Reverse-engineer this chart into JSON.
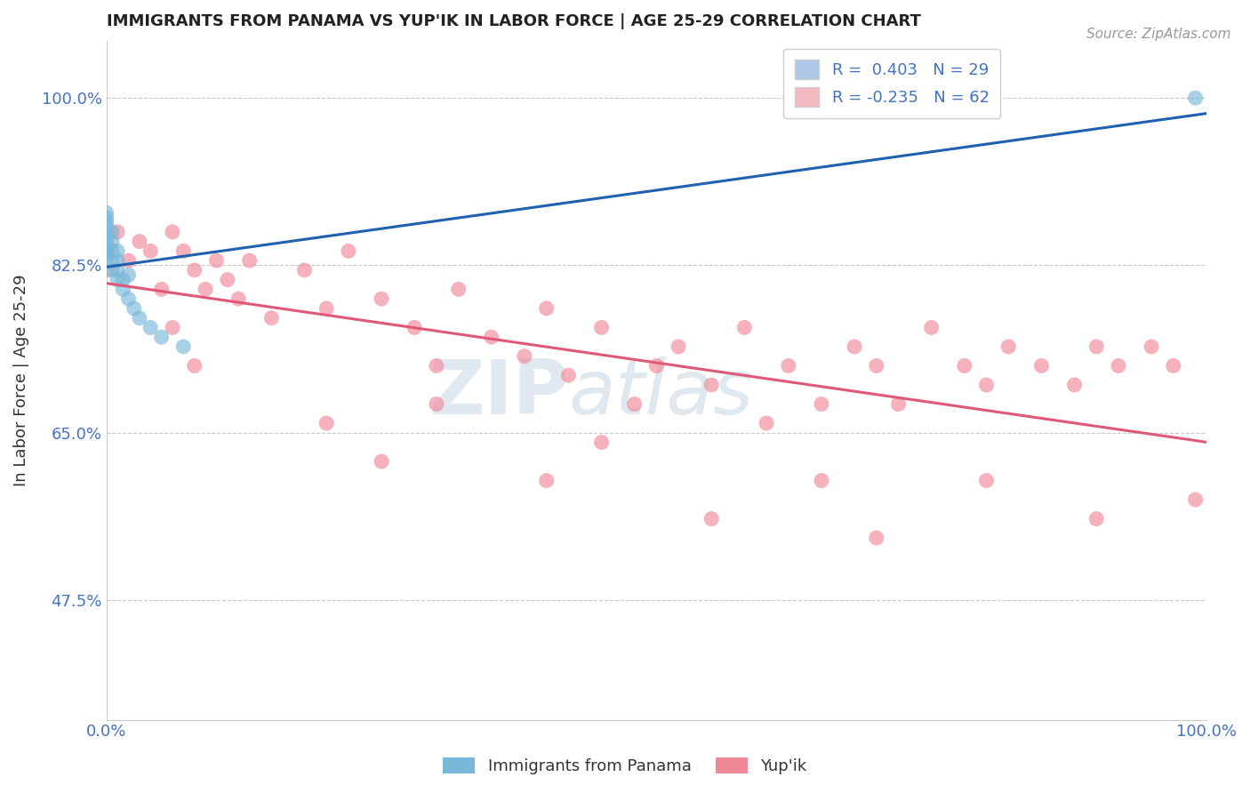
{
  "title": "IMMIGRANTS FROM PANAMA VS YUP'IK IN LABOR FORCE | AGE 25-29 CORRELATION CHART",
  "source_text": "Source: ZipAtlas.com",
  "ylabel": "In Labor Force | Age 25-29",
  "xlim": [
    0.0,
    1.0
  ],
  "ylim": [
    0.35,
    1.06
  ],
  "yticks": [
    0.475,
    0.65,
    0.825,
    1.0
  ],
  "ytick_labels": [
    "47.5%",
    "65.0%",
    "82.5%",
    "100.0%"
  ],
  "xtick_labels": [
    "0.0%",
    "100.0%"
  ],
  "legend_entries": [
    {
      "label": "R =  0.403   N = 29",
      "color": "#aec6e8"
    },
    {
      "label": "R = -0.235   N = 62",
      "color": "#f4b8c1"
    }
  ],
  "watermark_ZIP": "ZIP",
  "watermark_atlas": "atlas",
  "blue_color": "#7ab8d9",
  "pink_color": "#f08898",
  "blue_line_color": "#2060b0",
  "pink_line_color": "#e05878",
  "background_color": "#ffffff",
  "panama_x": [
    0.0,
    0.0,
    0.0,
    0.0,
    0.0,
    0.0,
    0.0,
    0.0,
    0.0,
    0.0,
    0.005,
    0.005,
    0.005,
    0.005,
    0.005,
    0.01,
    0.01,
    0.01,
    0.01,
    0.015,
    0.015,
    0.02,
    0.02,
    0.025,
    0.03,
    0.04,
    0.05,
    0.07,
    0.99
  ],
  "panama_y": [
    0.835,
    0.84,
    0.845,
    0.85,
    0.855,
    0.86,
    0.865,
    0.87,
    0.875,
    0.88,
    0.82,
    0.83,
    0.84,
    0.85,
    0.86,
    0.81,
    0.82,
    0.83,
    0.84,
    0.8,
    0.81,
    0.79,
    0.815,
    0.78,
    0.77,
    0.76,
    0.75,
    0.74,
    1.0
  ],
  "yupik_x": [
    0.0,
    0.0,
    0.01,
    0.02,
    0.03,
    0.04,
    0.05,
    0.06,
    0.07,
    0.08,
    0.09,
    0.1,
    0.11,
    0.12,
    0.13,
    0.15,
    0.18,
    0.2,
    0.22,
    0.25,
    0.28,
    0.3,
    0.32,
    0.35,
    0.38,
    0.4,
    0.42,
    0.45,
    0.48,
    0.5,
    0.52,
    0.55,
    0.58,
    0.6,
    0.62,
    0.65,
    0.68,
    0.7,
    0.72,
    0.75,
    0.78,
    0.8,
    0.82,
    0.85,
    0.88,
    0.9,
    0.92,
    0.95,
    0.97,
    0.99,
    0.06,
    0.08,
    0.2,
    0.25,
    0.3,
    0.4,
    0.45,
    0.55,
    0.65,
    0.7,
    0.8,
    0.9
  ],
  "yupik_y": [
    0.84,
    0.82,
    0.86,
    0.83,
    0.85,
    0.84,
    0.8,
    0.86,
    0.84,
    0.82,
    0.8,
    0.83,
    0.81,
    0.79,
    0.83,
    0.77,
    0.82,
    0.78,
    0.84,
    0.79,
    0.76,
    0.72,
    0.8,
    0.75,
    0.73,
    0.78,
    0.71,
    0.76,
    0.68,
    0.72,
    0.74,
    0.7,
    0.76,
    0.66,
    0.72,
    0.68,
    0.74,
    0.72,
    0.68,
    0.76,
    0.72,
    0.7,
    0.74,
    0.72,
    0.7,
    0.74,
    0.72,
    0.74,
    0.72,
    0.58,
    0.76,
    0.72,
    0.66,
    0.62,
    0.68,
    0.6,
    0.64,
    0.56,
    0.6,
    0.54,
    0.6,
    0.56
  ]
}
